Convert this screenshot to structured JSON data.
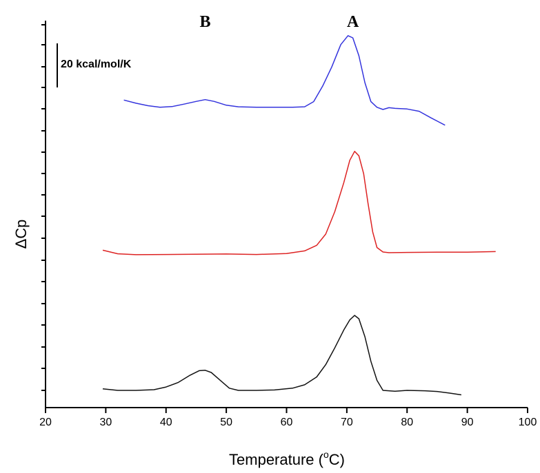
{
  "chart_data": {
    "type": "line",
    "xlabel": "Temperature (",
    "xlabel_sup": "o",
    "xlabel_end": "C)",
    "ylabel": "ΔCp",
    "xlim": [
      20,
      100
    ],
    "x_ticks": [
      "20",
      "30",
      "40",
      "50",
      "60",
      "70",
      "80",
      "90",
      "100"
    ],
    "y_minor_tick_count": 9,
    "scale_bar_label": "20 kcal/mol/K",
    "peak_labels": [
      "B",
      "A"
    ],
    "peak_label_x": [
      46.5,
      71
    ],
    "series": [
      {
        "color": "#3333dd",
        "x": [
          33,
          35,
          37,
          39,
          41,
          43,
          45,
          46.5,
          48,
          50,
          52,
          55,
          58,
          61,
          63,
          64.5,
          66,
          67.5,
          69,
          70.2,
          71,
          72,
          73,
          74,
          75,
          76,
          77,
          78,
          80,
          82,
          84,
          86.3
        ],
        "y": [
          4.2,
          2.8,
          1.7,
          1.0,
          1.3,
          2.4,
          3.6,
          4.4,
          3.6,
          1.9,
          1.2,
          1.0,
          1.0,
          1.0,
          1.2,
          3.5,
          10.5,
          19.0,
          29.0,
          33.0,
          32.0,
          24.0,
          12.0,
          3.5,
          1.0,
          0.0,
          0.8,
          0.5,
          0.2,
          -0.8,
          -3.8,
          -7.0
        ]
      },
      {
        "color": "#dd2222",
        "x": [
          29.5,
          32,
          35,
          40,
          45,
          50,
          55,
          60,
          63,
          65,
          66.5,
          68,
          69.5,
          70.5,
          71.3,
          72,
          72.8,
          73.5,
          74.3,
          75,
          76,
          77,
          80,
          85,
          90,
          94.7
        ],
        "y": [
          0.8,
          -0.8,
          -1.2,
          -1.1,
          -1.0,
          -0.9,
          -1.1,
          -0.7,
          0.5,
          3.0,
          8.0,
          18.0,
          31.0,
          41.0,
          45.0,
          43.0,
          35.0,
          22.0,
          9.0,
          2.0,
          0.0,
          -0.3,
          -0.2,
          -0.1,
          -0.1,
          0.2
        ]
      },
      {
        "color": "#111111",
        "x": [
          29.5,
          32,
          35,
          38,
          40,
          42,
          44,
          45.5,
          46.5,
          47.5,
          49,
          50.5,
          52,
          55,
          58,
          61,
          63,
          65,
          66.5,
          68,
          69.5,
          70.5,
          71.3,
          72,
          73,
          74,
          75,
          76,
          78,
          80,
          83,
          85,
          87,
          89
        ],
        "y": [
          0.7,
          0.0,
          0.0,
          0.3,
          1.5,
          3.5,
          6.8,
          8.8,
          9.0,
          8.0,
          4.5,
          1.0,
          0.0,
          0.0,
          0.2,
          1.0,
          2.5,
          6.0,
          11.5,
          19.0,
          27.0,
          31.5,
          33.5,
          32.0,
          24.0,
          13.0,
          4.5,
          0.0,
          -0.4,
          0.0,
          -0.2,
          -0.5,
          -1.2,
          -2.0
        ]
      }
    ]
  }
}
